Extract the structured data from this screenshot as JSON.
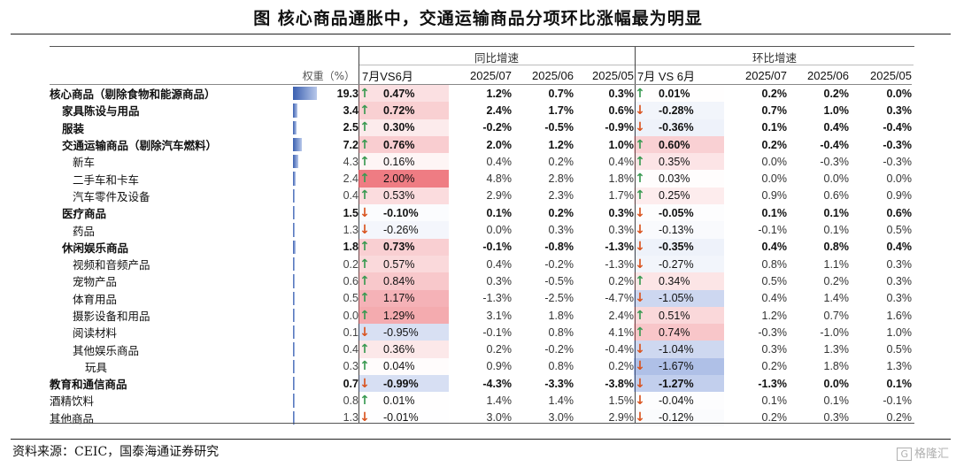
{
  "title": "图    核心商品通胀中，交通运输商品分项环比涨幅最为明显",
  "groups": {
    "yoy": "同比增速",
    "mom": "环比增速"
  },
  "headers": {
    "weight": "权重（%）",
    "yoy_diff": "7月VS6月",
    "yoy_cols": [
      "2025/07",
      "2025/06",
      "2025/05"
    ],
    "mom_diff": "7月 VS 6月",
    "mom_cols": [
      "2025/07",
      "2025/06",
      "2025/05"
    ]
  },
  "rows": [
    {
      "name": "核心商品（剔除食物和能源商品）",
      "level": 0,
      "bold": true,
      "weight": "19.3",
      "weight_val": 19.3,
      "yoy_diff": "0.47%",
      "yoy_dir": "up",
      "yoy": [
        "1.2%",
        "0.7%",
        "0.3%"
      ],
      "mom_diff": "0.01%",
      "mom_dir": "up",
      "mom": [
        "0.2%",
        "0.2%",
        "0.0%"
      ]
    },
    {
      "name": "家具陈设与用品",
      "level": 1,
      "bold": true,
      "weight": "3.4",
      "weight_val": 3.4,
      "yoy_diff": "0.72%",
      "yoy_dir": "up",
      "yoy": [
        "2.4%",
        "1.7%",
        "0.6%"
      ],
      "mom_diff": "-0.28%",
      "mom_dir": "down",
      "mom": [
        "0.7%",
        "1.0%",
        "0.3%"
      ]
    },
    {
      "name": "服装",
      "level": 1,
      "bold": true,
      "weight": "2.5",
      "weight_val": 2.5,
      "yoy_diff": "0.30%",
      "yoy_dir": "up",
      "yoy": [
        "-0.2%",
        "-0.5%",
        "-0.9%"
      ],
      "mom_diff": "-0.36%",
      "mom_dir": "down",
      "mom": [
        "0.1%",
        "0.4%",
        "-0.4%"
      ]
    },
    {
      "name": "交通运输商品（剔除汽车燃料）",
      "level": 1,
      "bold": true,
      "weight": "7.2",
      "weight_val": 7.2,
      "yoy_diff": "0.76%",
      "yoy_dir": "up",
      "yoy": [
        "2.0%",
        "1.2%",
        "1.0%"
      ],
      "mom_diff": "0.60%",
      "mom_dir": "up",
      "mom": [
        "0.2%",
        "-0.4%",
        "-0.3%"
      ]
    },
    {
      "name": "新车",
      "level": 2,
      "bold": false,
      "weight": "4.3",
      "weight_val": 4.3,
      "yoy_diff": "0.16%",
      "yoy_dir": "up",
      "yoy": [
        "0.4%",
        "0.2%",
        "0.4%"
      ],
      "mom_diff": "0.35%",
      "mom_dir": "up",
      "mom": [
        "0.0%",
        "-0.3%",
        "-0.3%"
      ]
    },
    {
      "name": "二手车和卡车",
      "level": 2,
      "bold": false,
      "weight": "2.4",
      "weight_val": 2.4,
      "yoy_diff": "2.00%",
      "yoy_dir": "up",
      "yoy": [
        "4.8%",
        "2.8%",
        "1.8%"
      ],
      "mom_diff": "0.03%",
      "mom_dir": "up",
      "mom": [
        "0.0%",
        "0.0%",
        "0.0%"
      ]
    },
    {
      "name": "汽车零件及设备",
      "level": 2,
      "bold": false,
      "weight": "0.4",
      "weight_val": 0.4,
      "yoy_diff": "0.53%",
      "yoy_dir": "up",
      "yoy": [
        "2.9%",
        "2.3%",
        "1.7%"
      ],
      "mom_diff": "0.25%",
      "mom_dir": "up",
      "mom": [
        "0.9%",
        "0.6%",
        "0.9%"
      ]
    },
    {
      "name": "医疗商品",
      "level": 1,
      "bold": true,
      "weight": "1.5",
      "weight_val": 1.5,
      "yoy_diff": "-0.10%",
      "yoy_dir": "down",
      "yoy": [
        "0.1%",
        "0.2%",
        "0.3%"
      ],
      "mom_diff": "-0.05%",
      "mom_dir": "down",
      "mom": [
        "0.1%",
        "0.1%",
        "0.6%"
      ]
    },
    {
      "name": "药品",
      "level": 2,
      "bold": false,
      "weight": "1.3",
      "weight_val": 1.3,
      "yoy_diff": "-0.26%",
      "yoy_dir": "down",
      "yoy": [
        "0.0%",
        "0.3%",
        "0.3%"
      ],
      "mom_diff": "-0.13%",
      "mom_dir": "down",
      "mom": [
        "-0.1%",
        "0.1%",
        "0.5%"
      ]
    },
    {
      "name": "休闲娱乐商品",
      "level": 1,
      "bold": true,
      "weight": "1.8",
      "weight_val": 1.8,
      "yoy_diff": "0.73%",
      "yoy_dir": "up",
      "yoy": [
        "-0.1%",
        "-0.8%",
        "-1.3%"
      ],
      "mom_diff": "-0.35%",
      "mom_dir": "down",
      "mom": [
        "0.4%",
        "0.8%",
        "0.4%"
      ]
    },
    {
      "name": "视频和音频产品",
      "level": 2,
      "bold": false,
      "weight": "0.2",
      "weight_val": 0.2,
      "yoy_diff": "0.57%",
      "yoy_dir": "up",
      "yoy": [
        "0.4%",
        "-0.2%",
        "-1.3%"
      ],
      "mom_diff": "-0.27%",
      "mom_dir": "down",
      "mom": [
        "0.8%",
        "1.1%",
        "0.3%"
      ]
    },
    {
      "name": "宠物产品",
      "level": 2,
      "bold": false,
      "weight": "0.6",
      "weight_val": 0.6,
      "yoy_diff": "0.84%",
      "yoy_dir": "up",
      "yoy": [
        "0.3%",
        "-0.5%",
        "0.2%"
      ],
      "mom_diff": "0.34%",
      "mom_dir": "up",
      "mom": [
        "0.5%",
        "0.2%",
        "0.3%"
      ]
    },
    {
      "name": "体育用品",
      "level": 2,
      "bold": false,
      "weight": "0.5",
      "weight_val": 0.5,
      "yoy_diff": "1.17%",
      "yoy_dir": "up",
      "yoy": [
        "-1.3%",
        "-2.5%",
        "-4.7%"
      ],
      "mom_diff": "-1.05%",
      "mom_dir": "down",
      "mom": [
        "0.4%",
        "1.4%",
        "0.3%"
      ]
    },
    {
      "name": "摄影设备和用品",
      "level": 2,
      "bold": false,
      "weight": "0.0",
      "weight_val": 0.0,
      "yoy_diff": "1.29%",
      "yoy_dir": "up",
      "yoy": [
        "3.1%",
        "1.8%",
        "2.4%"
      ],
      "mom_diff": "0.51%",
      "mom_dir": "up",
      "mom": [
        "1.2%",
        "0.7%",
        "1.6%"
      ]
    },
    {
      "name": "阅读材料",
      "level": 2,
      "bold": false,
      "weight": "0.1",
      "weight_val": 0.1,
      "yoy_diff": "-0.95%",
      "yoy_dir": "down",
      "yoy": [
        "-0.1%",
        "0.8%",
        "4.1%"
      ],
      "mom_diff": "0.74%",
      "mom_dir": "up",
      "mom": [
        "-0.3%",
        "-1.0%",
        "1.0%"
      ]
    },
    {
      "name": "其他娱乐商品",
      "level": 2,
      "bold": false,
      "weight": "0.4",
      "weight_val": 0.4,
      "yoy_diff": "0.36%",
      "yoy_dir": "up",
      "yoy": [
        "0.2%",
        "-0.2%",
        "-0.4%"
      ],
      "mom_diff": "-1.04%",
      "mom_dir": "down",
      "mom": [
        "0.3%",
        "1.3%",
        "0.5%"
      ]
    },
    {
      "name": "玩具",
      "level": 3,
      "bold": false,
      "weight": "0.3",
      "weight_val": 0.3,
      "yoy_diff": "0.04%",
      "yoy_dir": "up",
      "yoy": [
        "0.9%",
        "0.8%",
        "0.2%"
      ],
      "mom_diff": "-1.67%",
      "mom_dir": "down",
      "mom": [
        "0.2%",
        "1.8%",
        "1.3%"
      ]
    },
    {
      "name": "教育和通信商品",
      "level": 0,
      "bold": true,
      "weight": "0.7",
      "weight_val": 0.7,
      "yoy_diff": "-0.99%",
      "yoy_dir": "down",
      "yoy": [
        "-4.3%",
        "-3.3%",
        "-3.8%"
      ],
      "mom_diff": "-1.27%",
      "mom_dir": "down",
      "mom": [
        "-1.3%",
        "0.0%",
        "0.1%"
      ]
    },
    {
      "name": "酒精饮料",
      "level": 0,
      "bold": false,
      "weight": "0.8",
      "weight_val": 0.8,
      "yoy_diff": "0.01%",
      "yoy_dir": "up",
      "yoy": [
        "1.4%",
        "1.4%",
        "1.5%"
      ],
      "mom_diff": "-0.04%",
      "mom_dir": "down",
      "mom": [
        "0.1%",
        "0.1%",
        "-0.1%"
      ]
    },
    {
      "name": "其他商品",
      "level": 0,
      "bold": false,
      "weight": "1.3",
      "weight_val": 1.3,
      "yoy_diff": "-0.01%",
      "yoy_dir": "down",
      "yoy": [
        "3.0%",
        "3.0%",
        "2.9%"
      ],
      "mom_diff": "-0.12%",
      "mom_dir": "down",
      "mom": [
        "0.2%",
        "0.3%",
        "0.2%"
      ]
    }
  ],
  "source": "资料来源：CEIC，国泰海通证券研究",
  "watermark": "格隆汇",
  "watermark_mark": "G",
  "colors": {
    "up_arrow": "#3a9a52",
    "down_arrow": "#d9531e",
    "pos_fill": "#e9505a",
    "neg_fill": "#3a63c4",
    "weight_bar": "#3a5fb0"
  }
}
